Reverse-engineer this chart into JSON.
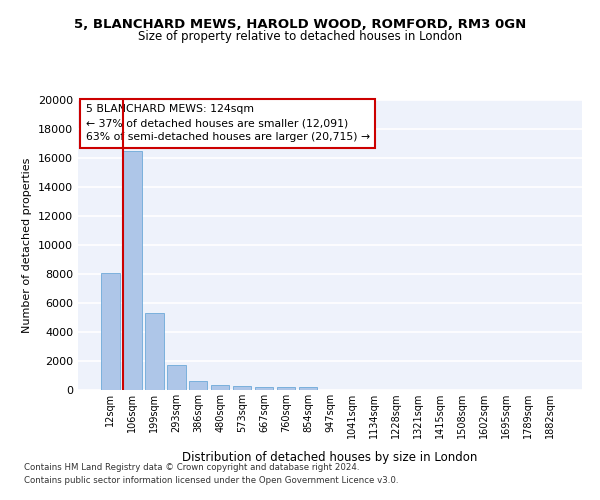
{
  "title_line1": "5, BLANCHARD MEWS, HAROLD WOOD, ROMFORD, RM3 0GN",
  "title_line2": "Size of property relative to detached houses in London",
  "xlabel": "Distribution of detached houses by size in London",
  "ylabel": "Number of detached properties",
  "categories": [
    "12sqm",
    "106sqm",
    "199sqm",
    "293sqm",
    "386sqm",
    "480sqm",
    "573sqm",
    "667sqm",
    "760sqm",
    "854sqm",
    "947sqm",
    "1041sqm",
    "1134sqm",
    "1228sqm",
    "1321sqm",
    "1415sqm",
    "1508sqm",
    "1602sqm",
    "1695sqm",
    "1789sqm",
    "1882sqm"
  ],
  "values": [
    8100,
    16500,
    5300,
    1750,
    650,
    350,
    270,
    210,
    180,
    200,
    0,
    0,
    0,
    0,
    0,
    0,
    0,
    0,
    0,
    0,
    0
  ],
  "bar_color": "#aec6e8",
  "bar_edge_color": "#5a9fd4",
  "highlight_bar_index": 1,
  "highlight_color": "#cc0000",
  "annotation_title": "5 BLANCHARD MEWS: 124sqm",
  "annotation_line2": "← 37% of detached houses are smaller (12,091)",
  "annotation_line3": "63% of semi-detached houses are larger (20,715) →",
  "annotation_box_color": "#ffffff",
  "annotation_box_edge": "#cc0000",
  "footnote1": "Contains HM Land Registry data © Crown copyright and database right 2024.",
  "footnote2": "Contains public sector information licensed under the Open Government Licence v3.0.",
  "background_color": "#eef2fb",
  "grid_color": "#ffffff",
  "ylim": [
    0,
    20000
  ],
  "yticks": [
    0,
    2000,
    4000,
    6000,
    8000,
    10000,
    12000,
    14000,
    16000,
    18000,
    20000
  ]
}
